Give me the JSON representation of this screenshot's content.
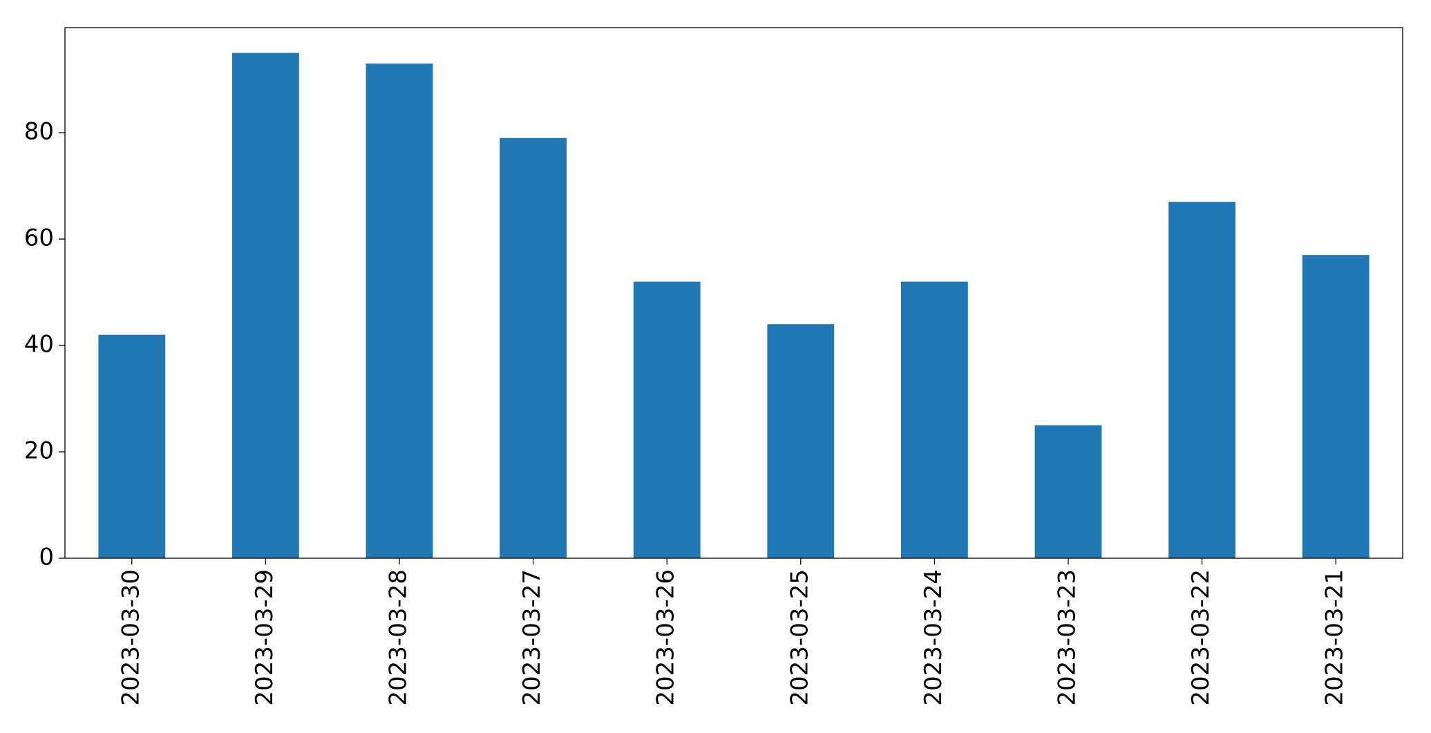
{
  "chart_data": {
    "type": "bar",
    "categories": [
      "2023-03-30",
      "2023-03-29",
      "2023-03-28",
      "2023-03-27",
      "2023-03-26",
      "2023-03-25",
      "2023-03-24",
      "2023-03-23",
      "2023-03-22",
      "2023-03-21"
    ],
    "values": [
      42,
      95,
      93,
      79,
      52,
      44,
      52,
      25,
      67,
      57
    ],
    "color": "#1f77b4",
    "ylim": [
      0,
      99.75
    ],
    "yticks": [
      0,
      20,
      40,
      60,
      80
    ],
    "grid": false
  }
}
